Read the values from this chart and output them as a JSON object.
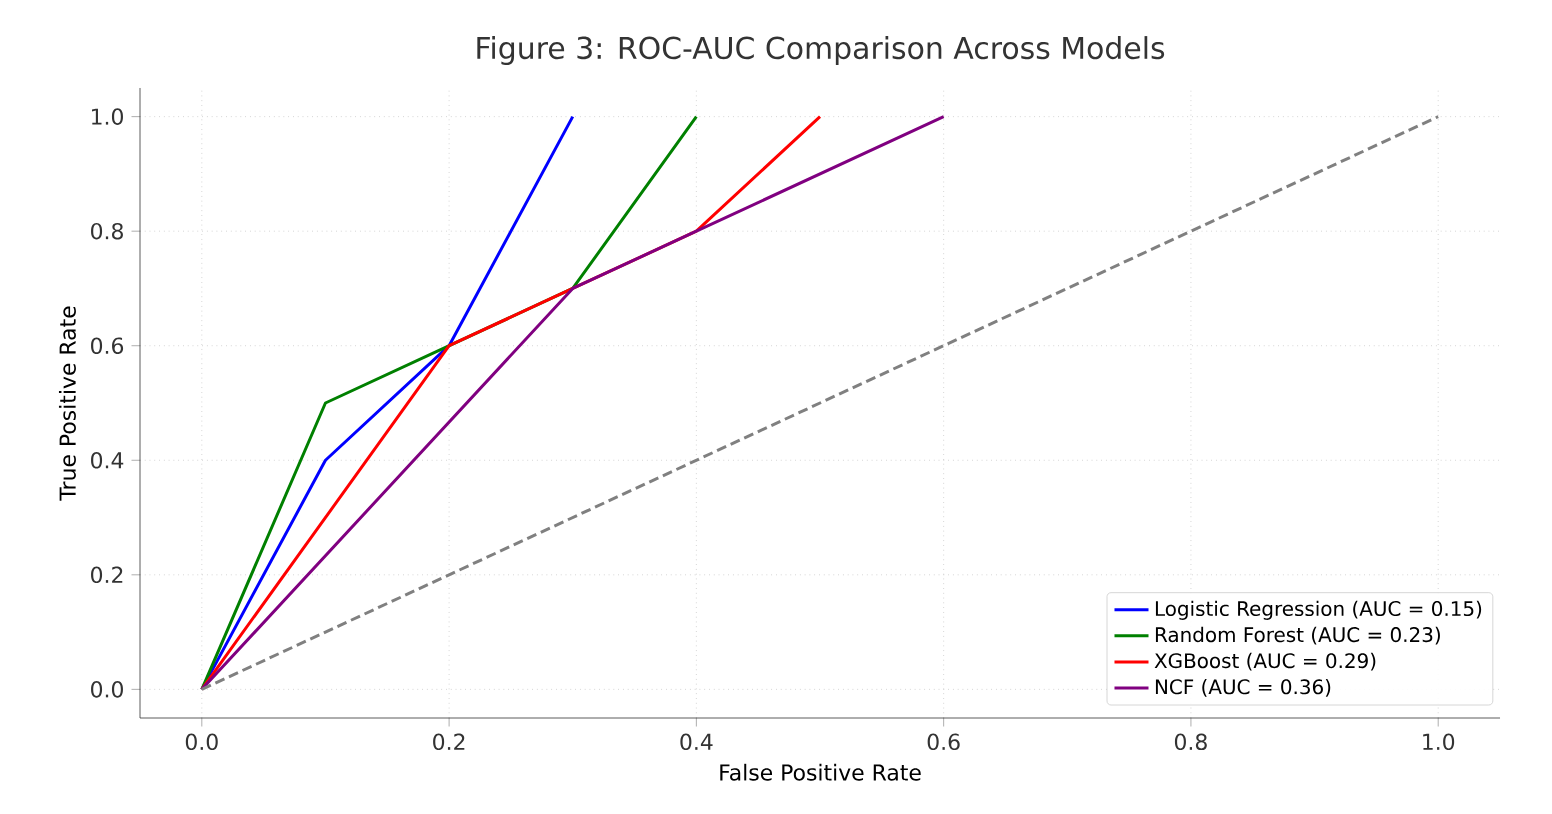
{
  "chart_data": {
    "type": "line",
    "title": "Figure 3: ROC-AUC Comparison Across Models",
    "xlabel": "False Positive Rate",
    "ylabel": "True Positive Rate",
    "xlim": [
      -0.05,
      1.05
    ],
    "ylim": [
      -0.05,
      1.05
    ],
    "xticks": [
      {
        "value": 0,
        "label": "0.0"
      },
      0.2,
      0.4,
      0.6,
      0.8,
      {
        "value": 1,
        "label": "1.0"
      }
    ],
    "yticks": [
      {
        "value": 0,
        "label": "0.0"
      },
      0.2,
      0.4,
      0.6,
      0.8,
      {
        "value": 1,
        "label": "1.0"
      }
    ],
    "grid": true,
    "legend": "bottom right",
    "marker": "none",
    "series": [
      {
        "name": "Logistic Regression (AUC = 0.15)",
        "color": "#0000ff",
        "x": [
          0,
          0.1,
          0.2,
          0.3
        ],
        "values": [
          0,
          0.4,
          0.6,
          1.0
        ]
      },
      {
        "name": "Random Forest (AUC = 0.23)",
        "color": "#008000",
        "x": [
          0,
          0.1,
          0.2,
          0.3,
          0.4
        ],
        "values": [
          0,
          0.5,
          0.6,
          0.7,
          1.0
        ]
      },
      {
        "name": "XGBoost (AUC = 0.29)",
        "color": "#ff0000",
        "x": [
          0,
          0.2,
          0.3,
          0.4,
          0.5
        ],
        "values": [
          0,
          0.6,
          0.7,
          0.8,
          1.0
        ]
      },
      {
        "name": "NCF (AUC = 0.36)",
        "color": "#800080",
        "x": [
          0,
          0.3,
          0.4,
          0.6
        ],
        "values": [
          0,
          0.7,
          0.8,
          1.0
        ]
      },
      {
        "color": "#808080",
        "line_style": "dashed",
        "x": [
          0,
          1
        ],
        "values": [
          0,
          1
        ]
      }
    ]
  }
}
